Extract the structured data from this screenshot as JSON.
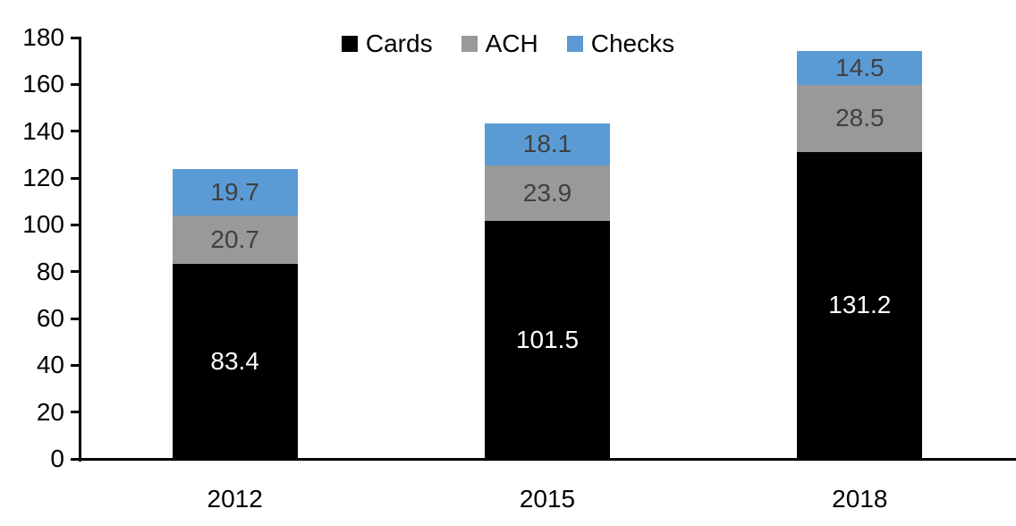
{
  "chart_data": {
    "type": "bar",
    "stacked": true,
    "title": "",
    "xlabel": "",
    "ylabel": "",
    "categories": [
      "2012",
      "2015",
      "2018"
    ],
    "series": [
      {
        "name": "Cards",
        "color": "#000000",
        "label_color": "#ffffff",
        "values": [
          83.4,
          101.5,
          131.2
        ]
      },
      {
        "name": "ACH",
        "color": "#999999",
        "label_color": "#404040",
        "values": [
          20.7,
          23.9,
          28.5
        ]
      },
      {
        "name": "Checks",
        "color": "#5b9bd5",
        "label_color": "#404040",
        "values": [
          19.7,
          18.1,
          14.5
        ]
      }
    ],
    "yticks": [
      0,
      20,
      40,
      60,
      80,
      100,
      120,
      140,
      160,
      180
    ],
    "ylim": [
      0,
      180
    ],
    "grid": false,
    "legend_position": "top-center",
    "value_labels": "inside-center"
  }
}
